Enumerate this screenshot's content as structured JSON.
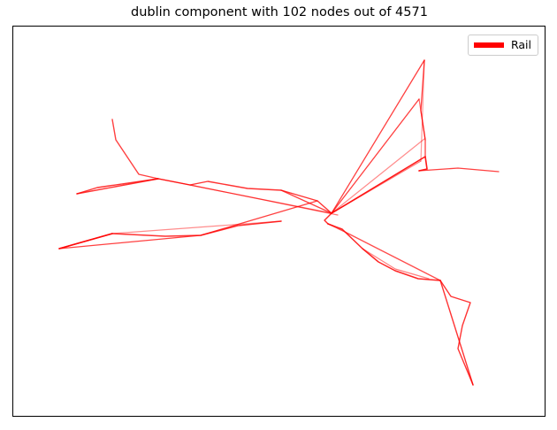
{
  "title": "dublin component with 102 nodes out of 4571",
  "legend": {
    "label": "Rail",
    "color": "#ff0000"
  },
  "edge_color": "#ff0000"
}
